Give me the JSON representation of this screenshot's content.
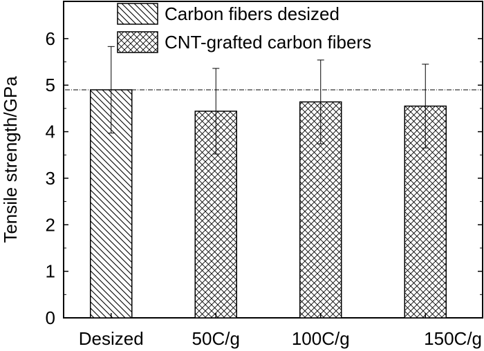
{
  "chart_data": {
    "type": "bar",
    "xlabel": "",
    "ylabel": "Tensile strength/GPa",
    "ylim": [
      0,
      6.8
    ],
    "yticks": [
      0,
      1,
      2,
      3,
      4,
      5,
      6
    ],
    "grid": false,
    "legend_position": "top-center",
    "categories": [
      "Desized",
      "50C/g",
      "100C/g",
      "150C/g"
    ],
    "series": [
      {
        "name": "Carbon fibers desized",
        "pattern": "diagonal-hatch",
        "values": [
          4.9,
          null,
          null,
          null
        ],
        "error": [
          0.93,
          null,
          null,
          null
        ]
      },
      {
        "name": "CNT-grafted carbon fibers",
        "pattern": "cross-hatch",
        "values": [
          null,
          4.44,
          4.64,
          4.55
        ],
        "error": [
          null,
          0.92,
          0.9,
          0.9
        ]
      }
    ],
    "reference_line": {
      "y": 4.9,
      "style": "dash-dot"
    },
    "colors": {
      "bar_stroke": "#000000",
      "hatch": "#000000",
      "background": "#ffffff"
    }
  }
}
